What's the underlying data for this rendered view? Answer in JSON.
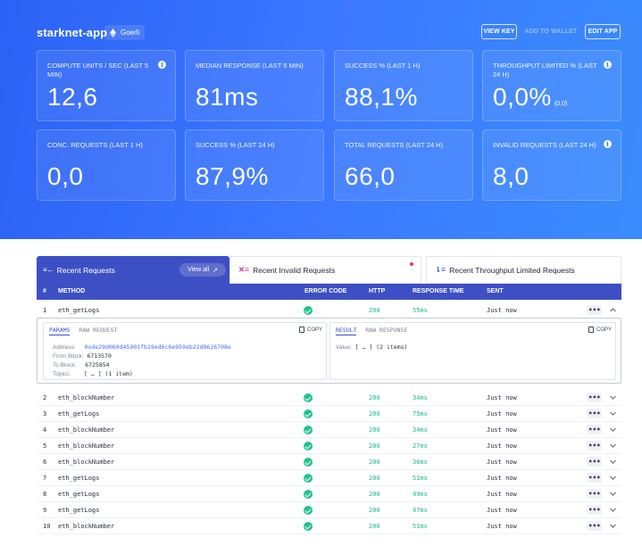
{
  "header": {
    "app_name": "starknet-app",
    "network": "Goerli",
    "buttons": {
      "view_key": "VIEW KEY",
      "add_to_wallet": "ADD TO WALLET",
      "edit_app": "EDIT APP"
    }
  },
  "stats": [
    {
      "label": "COMPUTE UNITS / SEC (LAST 5 MIN)",
      "value": "12,6",
      "info": true
    },
    {
      "label": "MEDIAN RESPONSE (LAST 5 MIN)",
      "value": "81ms"
    },
    {
      "label": "SUCCESS % (LAST 1 H)",
      "value": "88,1%"
    },
    {
      "label": "THROUGHPUT LIMITED % (LAST 24 H)",
      "value": "0,0%",
      "sub": "(0,0)",
      "info": true
    },
    {
      "label": "CONC. REQUESTS (LAST 1 H)",
      "value": "0,0"
    },
    {
      "label": "SUCCESS % (LAST 24 H)",
      "value": "87,9%"
    },
    {
      "label": "TOTAL REQUESTS (LAST 24 H)",
      "value": "66,0"
    },
    {
      "label": "INVALID REQUESTS (LAST 24 H)",
      "value": "8,0",
      "info": true
    }
  ],
  "tabs": {
    "recent": "Recent Requests",
    "view_all": "View all",
    "invalid": "Recent Invalid Requests",
    "throughput": "Recent Throughput Limited Requests"
  },
  "columns": {
    "num": "#",
    "method": "METHOD",
    "error_code": "ERROR CODE",
    "http": "HTTP",
    "response_time": "RESPONSE TIME",
    "sent": "SENT"
  },
  "expanded": {
    "params_tab": "PARAMS",
    "raw_request_tab": "RAW REQUEST",
    "result_tab": "RESULT",
    "raw_response_tab": "RAW RESPONSE",
    "copy": "COPY",
    "address_label": "Address:",
    "address": "0xde29d060d45901fb19ed6c6e959eb22d8626708e",
    "from_label": "From Block:",
    "from": "6713570",
    "to_label": "To Block:",
    "to": "6725854",
    "topics_label": "Topics:",
    "topics": "[ … ] (1 item)",
    "value_label": "Value:",
    "value": "[ … ] (2 items)"
  },
  "rows": [
    {
      "num": "1",
      "method": "eth_getLogs",
      "http": "200",
      "rt": "55ms",
      "sent": "Just now"
    },
    {
      "num": "2",
      "method": "eth_blockNumber",
      "http": "200",
      "rt": "34ms",
      "sent": "Just now"
    },
    {
      "num": "3",
      "method": "eth_getLogs",
      "http": "200",
      "rt": "75ms",
      "sent": "Just now"
    },
    {
      "num": "4",
      "method": "eth_blockNumber",
      "http": "200",
      "rt": "34ms",
      "sent": "Just now"
    },
    {
      "num": "5",
      "method": "eth_blockNumber",
      "http": "200",
      "rt": "27ms",
      "sent": "Just now"
    },
    {
      "num": "6",
      "method": "eth_blockNumber",
      "http": "200",
      "rt": "36ms",
      "sent": "Just now"
    },
    {
      "num": "7",
      "method": "eth_getLogs",
      "http": "200",
      "rt": "51ms",
      "sent": "Just now"
    },
    {
      "num": "8",
      "method": "eth_getLogs",
      "http": "200",
      "rt": "49ms",
      "sent": "Just now"
    },
    {
      "num": "9",
      "method": "eth_getLogs",
      "http": "200",
      "rt": "47ms",
      "sent": "Just now"
    },
    {
      "num": "10",
      "method": "eth_blockNumber",
      "http": "200",
      "rt": "51ms",
      "sent": "Just now"
    }
  ],
  "more_label": "•••"
}
